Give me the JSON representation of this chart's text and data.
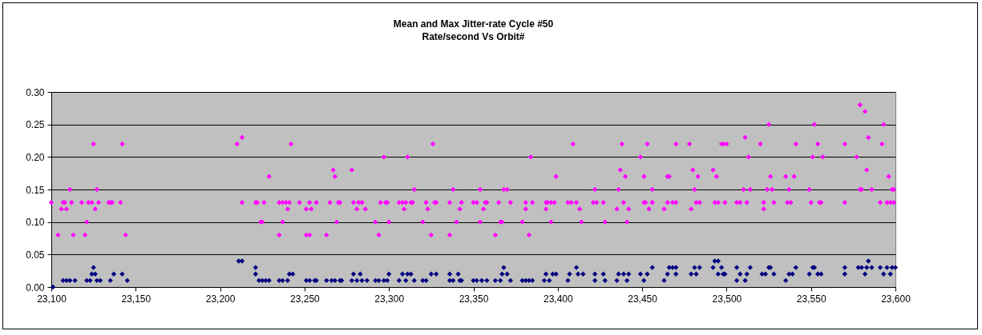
{
  "chart_data": {
    "type": "scatter",
    "title": "Mean and Max Jitter-rate Cycle #50",
    "subtitle": "Rate/second Vs Orbit#",
    "xlim": [
      23100,
      23600
    ],
    "xticks": [
      {
        "value": 23100,
        "label": "23,100"
      },
      {
        "value": 23150,
        "label": "23,150"
      },
      {
        "value": 23200,
        "label": "23,200"
      },
      {
        "value": 23250,
        "label": "23,250"
      },
      {
        "value": 23300,
        "label": "23,300"
      },
      {
        "value": 23350,
        "label": "23,350"
      },
      {
        "value": 23400,
        "label": "23,400"
      },
      {
        "value": 23450,
        "label": "23,450"
      },
      {
        "value": 23500,
        "label": "23,500"
      },
      {
        "value": 23550,
        "label": "23,550"
      },
      {
        "value": 23600,
        "label": "23,600"
      }
    ],
    "ylim": [
      0,
      0.3
    ],
    "yticks": [
      {
        "value": 0,
        "label": "0.00"
      },
      0.05,
      {
        "value": 0.1,
        "label": "0.10"
      },
      0.15,
      {
        "value": 0.2,
        "label": "0.20"
      },
      0.25,
      {
        "value": 0.3,
        "label": "0.30"
      }
    ],
    "grid": "y",
    "marker": "diamond",
    "legend": false,
    "series": [
      {
        "color": "#ff00ff",
        "x": [
          23100,
          23104,
          23106,
          23107,
          23108,
          23109,
          23111,
          23112,
          23113,
          23118,
          23120,
          23121,
          23122,
          23124,
          23125,
          23126,
          23127,
          23128,
          23134,
          23135,
          23136,
          23141,
          23142,
          23144,
          23210,
          23213,
          23213,
          23221,
          23222,
          23224,
          23225,
          23226,
          23229,
          23235,
          23235,
          23237,
          23237,
          23239,
          23240,
          23241,
          23242,
          23247,
          23251,
          23253,
          23251,
          23253,
          23254,
          23257,
          23263,
          23265,
          23267,
          23268,
          23269,
          23270,
          23271,
          23278,
          23279,
          23281,
          23282,
          23284,
          23286,
          23292,
          23294,
          23295,
          23297,
          23298,
          23300,
          23299,
          23306,
          23308,
          23309,
          23311,
          23310,
          23313,
          23314,
          23315,
          23320,
          23322,
          23323,
          23325,
          23326,
          23327,
          23328,
          23336,
          23338,
          23336,
          23340,
          23342,
          23343,
          23350,
          23352,
          23354,
          23354,
          23356,
          23357,
          23358,
          23363,
          23365,
          23366,
          23367,
          23368,
          23370,
          23372,
          23379,
          23381,
          23381,
          23383,
          23384,
          23385,
          23393,
          23393,
          23394,
          23396,
          23396,
          23399,
          23398,
          23406,
          23409,
          23408,
          23411,
          23413,
          23414,
          23421,
          23422,
          23423,
          23427,
          23428,
          23435,
          23436,
          23437,
          23438,
          23439,
          23440,
          23441,
          23442,
          23449,
          23451,
          23452,
          23451,
          23453,
          23454,
          23456,
          23456,
          23463,
          23465,
          23465,
          23468,
          23470,
          23470,
          23466,
          23478,
          23479,
          23480,
          23481,
          23482,
          23483,
          23484,
          23492,
          23493,
          23494,
          23495,
          23497,
          23498,
          23499,
          23500,
          23506,
          23508,
          23510,
          23511,
          23512,
          23513,
          23514,
          23520,
          23522,
          23522,
          23524,
          23525,
          23526,
          23527,
          23528,
          23535,
          23536,
          23537,
          23538,
          23540,
          23541,
          23549,
          23550,
          23551,
          23552,
          23554,
          23555,
          23556,
          23557,
          23570,
          23570,
          23577,
          23579,
          23579,
          23580,
          23582,
          23583,
          23584,
          23586,
          23591,
          23592,
          23593,
          23595,
          23596,
          23597,
          23598,
          23599,
          23599
        ],
        "values": [
          0.13,
          0.08,
          0.12,
          0.13,
          0.13,
          0.12,
          0.15,
          0.13,
          0.08,
          0.13,
          0.08,
          0.1,
          0.13,
          0.13,
          0.22,
          0.12,
          0.15,
          0.13,
          0.13,
          0.13,
          0.13,
          0.13,
          0.22,
          0.08,
          0.22,
          0.23,
          0.13,
          0.13,
          0.13,
          0.1,
          0.1,
          0.13,
          0.17,
          0.08,
          0.13,
          0.1,
          0.13,
          0.13,
          0.12,
          0.13,
          0.22,
          0.13,
          0.12,
          0.13,
          0.08,
          0.08,
          0.12,
          0.13,
          0.08,
          0.13,
          0.18,
          0.17,
          0.1,
          0.13,
          0.13,
          0.18,
          0.13,
          0.12,
          0.13,
          0.13,
          0.12,
          0.1,
          0.08,
          0.13,
          0.2,
          0.13,
          0.1,
          0.13,
          0.13,
          0.13,
          0.12,
          0.2,
          0.13,
          0.13,
          0.13,
          0.15,
          0.1,
          0.13,
          0.12,
          0.08,
          0.22,
          0.13,
          0.13,
          0.13,
          0.15,
          0.08,
          0.1,
          0.12,
          0.13,
          0.13,
          0.13,
          0.1,
          0.15,
          0.12,
          0.13,
          0.13,
          0.08,
          0.13,
          0.1,
          0.1,
          0.15,
          0.15,
          0.13,
          0.1,
          0.12,
          0.13,
          0.08,
          0.2,
          0.13,
          0.13,
          0.12,
          0.13,
          0.1,
          0.13,
          0.17,
          0.13,
          0.13,
          0.22,
          0.13,
          0.13,
          0.12,
          0.1,
          0.13,
          0.15,
          0.13,
          0.13,
          0.1,
          0.12,
          0.15,
          0.18,
          0.22,
          0.13,
          0.17,
          0.1,
          0.12,
          0.2,
          0.13,
          0.13,
          0.17,
          0.22,
          0.12,
          0.15,
          0.13,
          0.12,
          0.13,
          0.17,
          0.13,
          0.22,
          0.13,
          0.17,
          0.22,
          0.12,
          0.18,
          0.15,
          0.13,
          0.17,
          0.13,
          0.18,
          0.13,
          0.17,
          0.13,
          0.22,
          0.22,
          0.13,
          0.22,
          0.13,
          0.13,
          0.15,
          0.23,
          0.13,
          0.2,
          0.15,
          0.22,
          0.12,
          0.13,
          0.15,
          0.25,
          0.17,
          0.15,
          0.13,
          0.17,
          0.13,
          0.15,
          0.13,
          0.17,
          0.22,
          0.15,
          0.13,
          0.2,
          0.25,
          0.22,
          0.13,
          0.13,
          0.2,
          0.13,
          0.22,
          0.2,
          0.15,
          0.28,
          0.15,
          0.27,
          0.18,
          0.23,
          0.15,
          0.13,
          0.22,
          0.25,
          0.13,
          0.17,
          0.13,
          0.15,
          0.13,
          0.15
        ]
      },
      {
        "color": "#000080",
        "x": [
          23101,
          23107,
          23109,
          23111,
          23114,
          23121,
          23123,
          23124,
          23125,
          23126,
          23127,
          23129,
          23135,
          23137,
          23142,
          23145,
          23211,
          23213,
          23221,
          23221,
          23223,
          23225,
          23227,
          23229,
          23235,
          23237,
          23240,
          23241,
          23243,
          23251,
          23253,
          23256,
          23257,
          23263,
          23266,
          23268,
          23271,
          23272,
          23278,
          23279,
          23281,
          23283,
          23284,
          23287,
          23292,
          23294,
          23297,
          23299,
          23300,
          23306,
          23308,
          23310,
          23311,
          23313,
          23315,
          23320,
          23322,
          23325,
          23328,
          23336,
          23336,
          23338,
          23341,
          23342,
          23343,
          23350,
          23352,
          23355,
          23358,
          23363,
          23366,
          23367,
          23368,
          23370,
          23372,
          23379,
          23381,
          23383,
          23385,
          23392,
          23393,
          23395,
          23397,
          23399,
          23406,
          23407,
          23411,
          23412,
          23415,
          23422,
          23422,
          23427,
          23428,
          23435,
          23436,
          23439,
          23441,
          23442,
          23449,
          23451,
          23453,
          23456,
          23463,
          23465,
          23466,
          23468,
          23470,
          23470,
          23479,
          23481,
          23482,
          23484,
          23492,
          23493,
          23495,
          23495,
          23497,
          23498,
          23499,
          23506,
          23506,
          23508,
          23511,
          23512,
          23514,
          23521,
          23523,
          23525,
          23526,
          23528,
          23535,
          23537,
          23539,
          23541,
          23549,
          23551,
          23552,
          23554,
          23556,
          23570,
          23570,
          23578,
          23580,
          23582,
          23583,
          23584,
          23586,
          23591,
          23593,
          23595,
          23597,
          23598,
          23600
        ],
        "values": [
          0,
          0.01,
          0.01,
          0.01,
          0.01,
          0.01,
          0.01,
          0.02,
          0.03,
          0.02,
          0.01,
          0.01,
          0.01,
          0.02,
          0.02,
          0.01,
          0.04,
          0.04,
          0.03,
          0.02,
          0.01,
          0.01,
          0.01,
          0.01,
          0.01,
          0.01,
          0.01,
          0.02,
          0.02,
          0.01,
          0.01,
          0.01,
          0.01,
          0.01,
          0.01,
          0.01,
          0.01,
          0.01,
          0.01,
          0.02,
          0.01,
          0.02,
          0.01,
          0.01,
          0.01,
          0.01,
          0.01,
          0.01,
          0.02,
          0.01,
          0.02,
          0.01,
          0.02,
          0.02,
          0.01,
          0.01,
          0.01,
          0.02,
          0.02,
          0.01,
          0.02,
          0.01,
          0.02,
          0.01,
          0.01,
          0.01,
          0.01,
          0.01,
          0.01,
          0.01,
          0.01,
          0.02,
          0.03,
          0.02,
          0.01,
          0.01,
          0.01,
          0.01,
          0.01,
          0.01,
          0.02,
          0.01,
          0.02,
          0.02,
          0.01,
          0.02,
          0.03,
          0.02,
          0.02,
          0.01,
          0.02,
          0.02,
          0.01,
          0.01,
          0.02,
          0.02,
          0.01,
          0.02,
          0.02,
          0.01,
          0.02,
          0.03,
          0.01,
          0.02,
          0.03,
          0.03,
          0.02,
          0.03,
          0.02,
          0.03,
          0.02,
          0.03,
          0.03,
          0.04,
          0.04,
          0.02,
          0.03,
          0.02,
          0.02,
          0.03,
          0.01,
          0.02,
          0.01,
          0.02,
          0.03,
          0.02,
          0.02,
          0.03,
          0.03,
          0.02,
          0.01,
          0.02,
          0.02,
          0.03,
          0.02,
          0.03,
          0.03,
          0.02,
          0.02,
          0.03,
          0.02,
          0.03,
          0.03,
          0.02,
          0.03,
          0.04,
          0.03,
          0.03,
          0.02,
          0.03,
          0.02,
          0.03,
          0.03
        ]
      }
    ]
  }
}
